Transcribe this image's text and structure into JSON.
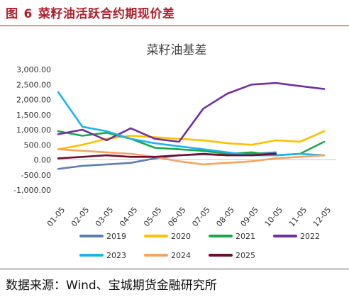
{
  "figure": {
    "label": "图",
    "number": "6",
    "title": "菜籽油活跃合约期现价差"
  },
  "source": "数据来源：Wind、宝城期货金融研究所",
  "chart_data": {
    "type": "line",
    "title": "菜籽油基差",
    "xlabel": "",
    "ylabel": "",
    "x": [
      "01-05",
      "02-05",
      "03-05",
      "04-05",
      "05-05",
      "06-05",
      "07-05",
      "08-05",
      "09-05",
      "10-05",
      "11-05",
      "12-05"
    ],
    "x_tick_labels": [
      "01-05",
      "02-05",
      "03-05",
      "04-05",
      "05-05",
      "06-05",
      "07-05",
      "08-05",
      "09-05",
      "10-05",
      "11-05",
      "12-05"
    ],
    "y_tick_labels": [
      "3,000.00",
      "2,500.00",
      "2,000.00",
      "1,500.00",
      "1,000.00",
      "500.00",
      "0.00",
      "-500.00",
      "-1,000.00"
    ],
    "ylim": [
      -1000,
      3000
    ],
    "grid": false,
    "legend_position": "bottom",
    "series": [
      {
        "name": "2019",
        "color": "#5b7fb0",
        "values": [
          -300,
          -200,
          -150,
          -100,
          50,
          150,
          180,
          150,
          200,
          250,
          null,
          null
        ]
      },
      {
        "name": "2020",
        "color": "#ffc000",
        "values": [
          350,
          500,
          700,
          800,
          750,
          700,
          650,
          550,
          500,
          650,
          600,
          950
        ]
      },
      {
        "name": "2021",
        "color": "#1aa84a",
        "values": [
          950,
          800,
          900,
          700,
          400,
          350,
          300,
          200,
          250,
          150,
          200,
          600
        ]
      },
      {
        "name": "2022",
        "color": "#7030a0",
        "values": [
          850,
          1000,
          650,
          1050,
          700,
          600,
          1700,
          2200,
          2500,
          2550,
          2450,
          2350
        ]
      },
      {
        "name": "2023",
        "color": "#1fb2e8",
        "values": [
          2250,
          1100,
          950,
          700,
          550,
          450,
          350,
          250,
          150,
          150,
          200,
          150
        ]
      },
      {
        "name": "2024",
        "color": "#f4a460",
        "values": [
          350,
          300,
          250,
          200,
          100,
          -50,
          -150,
          -100,
          -50,
          50,
          100,
          150
        ]
      },
      {
        "name": "2025",
        "color": "#6b0e32",
        "values": [
          50,
          100,
          150,
          100,
          100,
          150,
          200,
          150,
          150,
          200,
          null,
          null
        ]
      }
    ]
  }
}
